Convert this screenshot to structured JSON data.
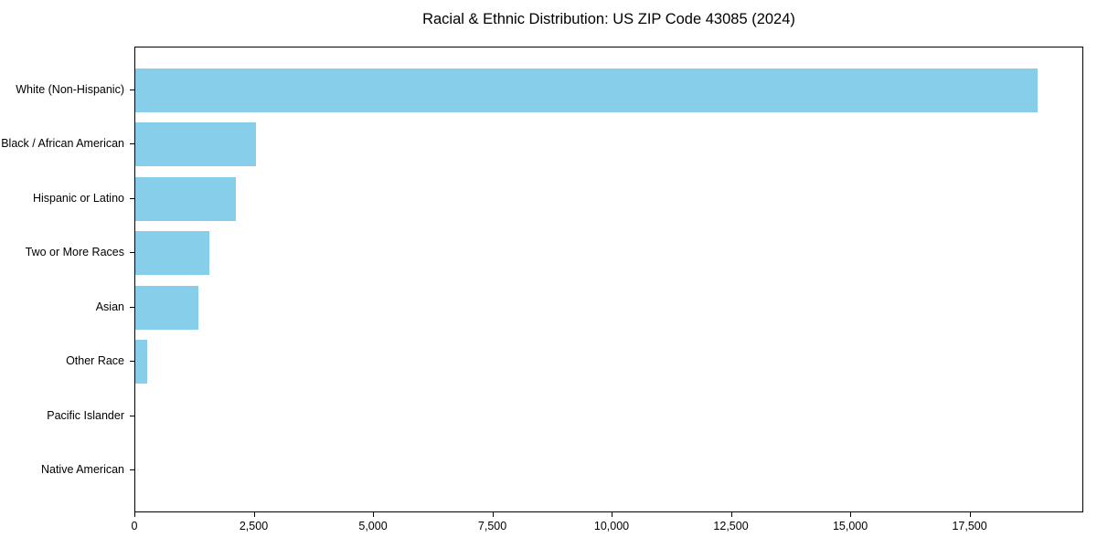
{
  "title": "Racial & Ethnic Distribution: US ZIP Code 43085 (2024)",
  "chart_data": {
    "type": "bar",
    "orientation": "horizontal",
    "title": "Racial & Ethnic Distribution: US ZIP Code 43085 (2024)",
    "categories": [
      "White (Non-Hispanic)",
      "Black / African American",
      "Hispanic or Latino",
      "Two or More Races",
      "Asian",
      "Other Race",
      "Pacific Islander",
      "Native American"
    ],
    "values": [
      18900,
      2520,
      2110,
      1550,
      1330,
      255,
      0,
      0
    ],
    "xlabel": "",
    "ylabel": "",
    "xlim": [
      0,
      19845
    ],
    "x_ticks": [
      0,
      2500,
      5000,
      7500,
      10000,
      12500,
      15000,
      17500
    ],
    "x_tick_labels": [
      "0",
      "2,500",
      "5,000",
      "7,500",
      "10,000",
      "12,500",
      "15,000",
      "17,500"
    ],
    "bar_color": "#87ceeb",
    "background_color": "#ffffff",
    "spine_color": "#000000",
    "text_color": "#000000",
    "grid": false,
    "legend": null
  }
}
